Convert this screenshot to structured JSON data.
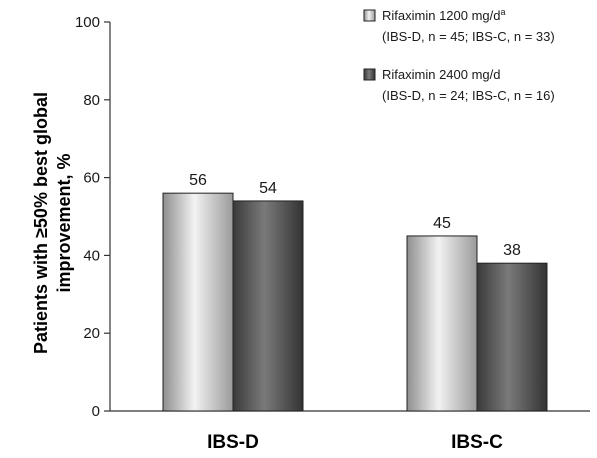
{
  "chart_data": {
    "type": "bar",
    "categories": [
      "IBS-D",
      "IBS-C"
    ],
    "series": [
      {
        "name": "Rifaximin 1200 mg/d",
        "name_superscript": "a",
        "name_line2": "(IBS-D, n = 45; IBS-C, n = 33)",
        "values": [
          56,
          45
        ],
        "color": "#d9d9d9"
      },
      {
        "name": "Rifaximin 2400 mg/d",
        "name_superscript": "",
        "name_line2": "(IBS-D, n = 24; IBS-C, n = 16)",
        "values": [
          54,
          38
        ],
        "color": "#555555"
      }
    ],
    "ylabel_line1": "Patients with ≥50% best global",
    "ylabel_line2": "improvement, %",
    "ylim": [
      0,
      100
    ],
    "yticks": [
      0,
      20,
      40,
      60,
      80,
      100
    ],
    "legend_position": "top-right",
    "grid": false
  }
}
